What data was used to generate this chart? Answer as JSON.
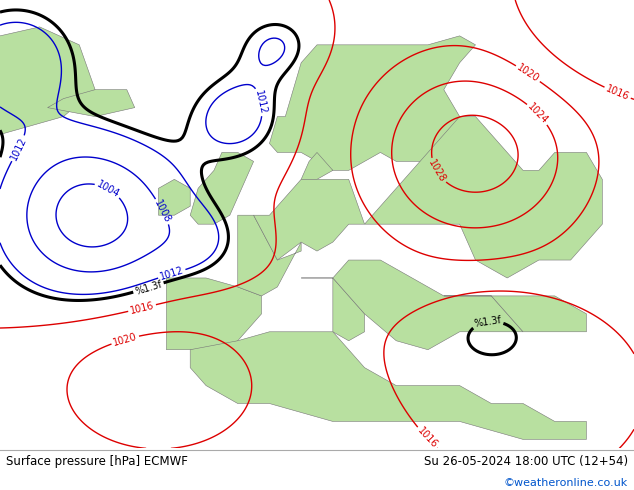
{
  "title_left": "Surface pressure [hPa] ECMWF",
  "title_right": "Su 26-05-2024 18:00 UTC (12+54)",
  "credit": "©weatheronline.co.uk",
  "credit_color": "#0055cc",
  "ocean_color": "#d8d8d8",
  "land_color": "#b8e0a0",
  "footer_bg": "#ffffff",
  "text_color": "#000000",
  "contour_red": "#dd0000",
  "contour_blue": "#0000cc",
  "contour_black": "#000000",
  "figsize": [
    6.34,
    4.9
  ],
  "dpi": 100,
  "map_extent": [
    -30,
    50,
    25,
    75
  ]
}
